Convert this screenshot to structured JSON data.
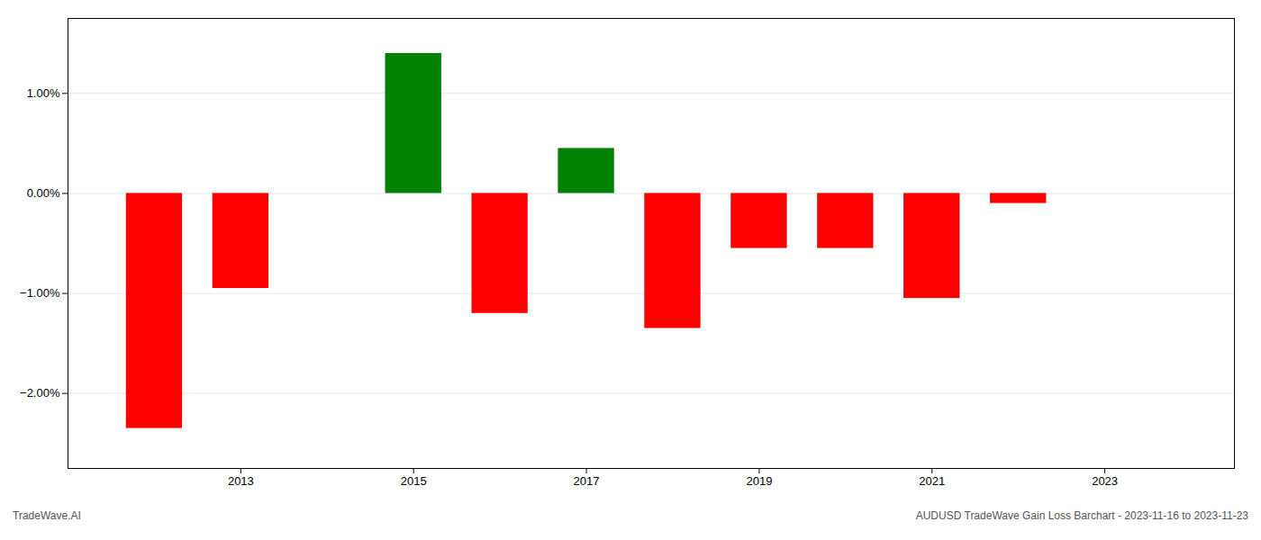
{
  "chart_data": {
    "type": "bar",
    "x": [
      2012,
      2013,
      2015,
      2016,
      2017,
      2018,
      2019,
      2020,
      2021,
      2022
    ],
    "values": [
      -2.35,
      -0.95,
      1.4,
      -1.2,
      0.45,
      -1.35,
      -0.55,
      -0.55,
      -1.05,
      -0.1
    ],
    "colors": [
      "#ff0000",
      "#ff0000",
      "#008000",
      "#ff0000",
      "#008000",
      "#ff0000",
      "#ff0000",
      "#ff0000",
      "#ff0000",
      "#ff0000"
    ],
    "xlim": [
      2011.0,
      2024.5
    ],
    "xticks": [
      2013,
      2015,
      2017,
      2019,
      2021,
      2023
    ],
    "ylim": [
      -2.75,
      1.75
    ],
    "yticks": [
      {
        "value": -2.0,
        "label": "−2.00%"
      },
      {
        "value": -1.0,
        "label": "−1.00%"
      },
      {
        "value": 0.0,
        "label": "0.00%"
      },
      {
        "value": 1.0,
        "label": "1.00%"
      }
    ],
    "grid": true,
    "annotations": [
      "TradeWave.AI",
      "AUDUSD TradeWave Gain Loss Barchart - 2023-11-16 to 2023-11-23"
    ]
  }
}
